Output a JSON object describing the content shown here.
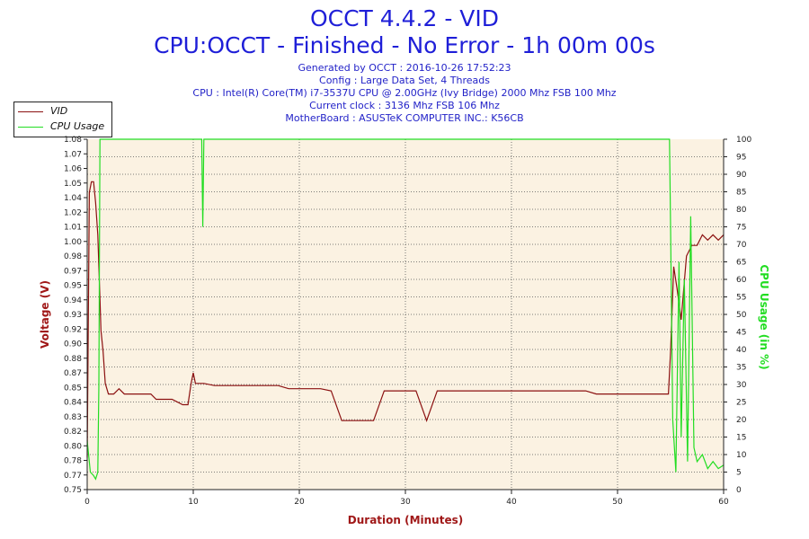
{
  "header": {
    "title": "OCCT 4.4.2 - VID",
    "subtitle": "CPU:OCCT - Finished - No Error - 1h 00m 00s",
    "info_lines": [
      "Generated by OCCT : 2016-10-26 17:52:23",
      "Config : Large Data Set, 4 Threads",
      "CPU : Intel(R) Core(TM) i7-3537U CPU @ 2.00GHz (Ivy Bridge) 2000 Mhz FSB 100 Mhz",
      "Current clock : 3136 Mhz FSB 106 Mhz",
      "MotherBoard : ASUSTeK COMPUTER INC.: K56CB"
    ]
  },
  "legend": [
    {
      "label": "VID",
      "color": "#8b1010"
    },
    {
      "label": "CPU Usage",
      "color": "#22dd22"
    }
  ],
  "chart_data": {
    "type": "line",
    "title": "OCCT 4.4.2 - VID",
    "xlabel": "Duration (Minutes)",
    "ylabel_left": "Voltage (V)",
    "ylabel_right": "CPU Usage (in %)",
    "xlim": [
      0,
      60
    ],
    "ylim_left": [
      0.75,
      1.08
    ],
    "ylim_right": [
      0,
      100
    ],
    "x_ticks": [
      "0",
      "10",
      "20",
      "30",
      "40",
      "50",
      "60"
    ],
    "y_ticks_left": [
      "0.75",
      "0.77",
      "0.78",
      "0.80",
      "0.82",
      "0.83",
      "0.84",
      "0.85",
      "0.87",
      "0.88",
      "0.90",
      "0.92",
      "0.93",
      "0.94",
      "0.95",
      "0.97",
      "0.98",
      "1.00",
      "1.01",
      "1.02",
      "1.04",
      "1.05",
      "1.06",
      "1.07",
      "1.08"
    ],
    "y_ticks_right": [
      "0",
      "5",
      "10",
      "15",
      "20",
      "25",
      "30",
      "35",
      "40",
      "45",
      "50",
      "55",
      "60",
      "65",
      "70",
      "75",
      "80",
      "85",
      "90",
      "95",
      "100"
    ],
    "grid": true,
    "legend_position": "top-left",
    "series": [
      {
        "name": "VID",
        "axis": "left",
        "color": "#8b1010",
        "x": [
          0,
          0.2,
          0.4,
          0.6,
          0.8,
          1.0,
          1.1,
          1.2,
          1.3,
          1.5,
          1.7,
          2.0,
          2.5,
          3.0,
          3.5,
          4.0,
          5.0,
          6.0,
          6.5,
          7.0,
          8.0,
          9.0,
          9.5,
          9.8,
          10.0,
          10.2,
          10.5,
          11.0,
          12.0,
          13.0,
          14.0,
          15.0,
          16.0,
          17.0,
          18.0,
          19.0,
          20.0,
          21.0,
          22.0,
          23.0,
          24.0,
          25.0,
          26.0,
          27.0,
          28.0,
          29.0,
          30.0,
          31.0,
          32.0,
          33.0,
          34.0,
          35.0,
          36.0,
          37.0,
          38.0,
          39.0,
          40.0,
          41.0,
          42.0,
          43.0,
          44.0,
          45.0,
          46.0,
          47.0,
          48.0,
          49.0,
          50.0,
          51.0,
          52.0,
          53.0,
          54.0,
          54.8,
          55.0,
          55.3,
          55.6,
          56.0,
          56.5,
          57.0,
          57.5,
          58.0,
          58.5,
          59.0,
          59.5,
          60.0
        ],
        "y": [
          0.78,
          1.03,
          1.04,
          1.04,
          1.02,
          0.99,
          0.96,
          0.93,
          0.9,
          0.88,
          0.85,
          0.84,
          0.84,
          0.845,
          0.84,
          0.84,
          0.84,
          0.84,
          0.835,
          0.835,
          0.835,
          0.83,
          0.83,
          0.85,
          0.86,
          0.85,
          0.85,
          0.85,
          0.848,
          0.848,
          0.848,
          0.848,
          0.848,
          0.848,
          0.848,
          0.845,
          0.845,
          0.845,
          0.845,
          0.843,
          0.815,
          0.815,
          0.815,
          0.815,
          0.843,
          0.843,
          0.843,
          0.843,
          0.815,
          0.843,
          0.843,
          0.843,
          0.843,
          0.843,
          0.843,
          0.843,
          0.843,
          0.843,
          0.843,
          0.843,
          0.843,
          0.843,
          0.843,
          0.843,
          0.84,
          0.84,
          0.84,
          0.84,
          0.84,
          0.84,
          0.84,
          0.84,
          0.88,
          0.96,
          0.94,
          0.91,
          0.97,
          0.98,
          0.98,
          0.99,
          0.985,
          0.99,
          0.985,
          0.99
        ]
      },
      {
        "name": "CPU Usage",
        "axis": "right",
        "color": "#22dd22",
        "x": [
          0,
          0.3,
          0.6,
          0.8,
          1.0,
          1.1,
          1.2,
          1.3,
          10.8,
          10.9,
          11.0,
          11.1,
          11.2,
          54.9,
          55.0,
          55.2,
          55.5,
          55.8,
          56.0,
          56.3,
          56.6,
          56.9,
          57.2,
          57.5,
          58.0,
          58.5,
          59.0,
          59.5,
          60.0
        ],
        "y": [
          14,
          5,
          4,
          3,
          5,
          30,
          100,
          100,
          100,
          75,
          100,
          100,
          100,
          100,
          75,
          20,
          5,
          65,
          15,
          60,
          8,
          78,
          12,
          8,
          10,
          6,
          8,
          6,
          7
        ]
      }
    ]
  }
}
